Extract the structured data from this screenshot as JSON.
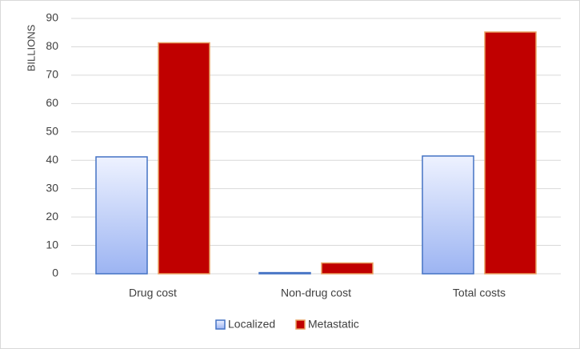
{
  "chart_data": {
    "type": "bar",
    "y_label": "BILLIONS",
    "categories": [
      "Drug cost",
      "Non-drug cost",
      "Total costs"
    ],
    "series": [
      {
        "name": "Localized",
        "color": "#4472c4",
        "values": [
          41.2,
          0.4,
          41.5
        ]
      },
      {
        "name": "Metastatic",
        "color": "#c00000",
        "values": [
          81.4,
          3.8,
          85.2
        ]
      }
    ],
    "ylim": [
      0,
      90
    ],
    "yticks": [
      0,
      10,
      20,
      30,
      40,
      50,
      60,
      70,
      80,
      90
    ],
    "grid": true,
    "legend": "bottom"
  }
}
